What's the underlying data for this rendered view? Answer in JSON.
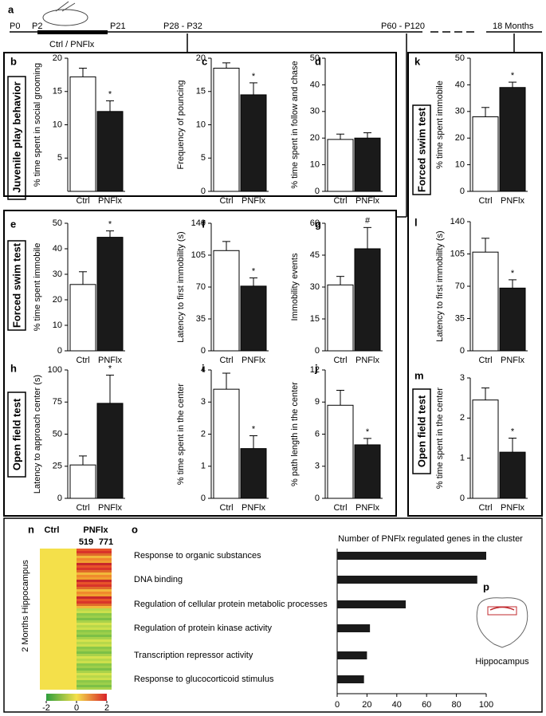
{
  "timeline": {
    "label": "a",
    "points": [
      "P0",
      "P2",
      "P21",
      "P28 - P32",
      "P60 - P120",
      "18 Months"
    ],
    "treatment": "Ctrl / PNFlx"
  },
  "sections": [
    "Juvenile play behavior",
    "Forced swim test",
    "Open field test",
    "Forced swim test",
    "Open field test"
  ],
  "brain_panel": {
    "label": "p",
    "text": "Hippocampus"
  },
  "chart_data": [
    {
      "type": "bar",
      "label": "b",
      "ylabel": "% time spent in social grooming",
      "categories": [
        "Ctrl",
        "PNFlx"
      ],
      "values": [
        17.2,
        12
      ],
      "errors": [
        1.3,
        1.6
      ],
      "significance": [
        null,
        "*"
      ],
      "colors": [
        "#ffffff",
        "#1a1a1a"
      ],
      "ylim": [
        0,
        20
      ],
      "yticks": [
        5,
        10,
        15,
        20
      ]
    },
    {
      "type": "bar",
      "label": "c",
      "ylabel": "Frequency of pouncing",
      "categories": [
        "Ctrl",
        "PNFlx"
      ],
      "values": [
        18.5,
        14.5
      ],
      "errors": [
        0.8,
        1.8
      ],
      "significance": [
        null,
        "*"
      ],
      "colors": [
        "#ffffff",
        "#1a1a1a"
      ],
      "ylim": [
        0,
        20
      ],
      "yticks": [
        0,
        5,
        10,
        15,
        20
      ]
    },
    {
      "type": "bar",
      "label": "d",
      "ylabel": "% time spent in follow and chase",
      "categories": [
        "Ctrl",
        "PNFlx"
      ],
      "values": [
        19.5,
        20
      ],
      "errors": [
        2,
        2
      ],
      "significance": [
        null,
        null
      ],
      "colors": [
        "#ffffff",
        "#1a1a1a"
      ],
      "ylim": [
        0,
        50
      ],
      "yticks": [
        0,
        10,
        20,
        30,
        40,
        50
      ]
    },
    {
      "type": "bar",
      "label": "e",
      "ylabel": "% time spent immobile",
      "categories": [
        "Ctrl",
        "PNFlx"
      ],
      "values": [
        26,
        44.5
      ],
      "errors": [
        5,
        2.5
      ],
      "significance": [
        null,
        "*"
      ],
      "colors": [
        "#ffffff",
        "#1a1a1a"
      ],
      "ylim": [
        0,
        50
      ],
      "yticks": [
        0,
        10,
        20,
        30,
        40,
        50
      ]
    },
    {
      "type": "bar",
      "label": "f",
      "ylabel": "Latency to first immobility (s)",
      "categories": [
        "Ctrl",
        "PNFlx"
      ],
      "values": [
        110,
        71
      ],
      "errors": [
        10,
        9
      ],
      "significance": [
        null,
        "*"
      ],
      "colors": [
        "#ffffff",
        "#1a1a1a"
      ],
      "ylim": [
        0,
        140
      ],
      "yticks": [
        0,
        35,
        70,
        105,
        140
      ]
    },
    {
      "type": "bar",
      "label": "g",
      "ylabel": "Immobility events",
      "categories": [
        "Ctrl",
        "PNFlx"
      ],
      "values": [
        31,
        48
      ],
      "errors": [
        4,
        10
      ],
      "significance": [
        null,
        "#"
      ],
      "colors": [
        "#ffffff",
        "#1a1a1a"
      ],
      "ylim": [
        0,
        60
      ],
      "yticks": [
        0,
        15,
        30,
        45,
        60
      ]
    },
    {
      "type": "bar",
      "label": "h",
      "ylabel": "Latency to approach center (s)",
      "categories": [
        "Ctrl",
        "PNFlx"
      ],
      "values": [
        26,
        74
      ],
      "errors": [
        7,
        22
      ],
      "significance": [
        null,
        "*"
      ],
      "colors": [
        "#ffffff",
        "#1a1a1a"
      ],
      "ylim": [
        0,
        100
      ],
      "yticks": [
        0,
        25,
        50,
        75,
        100
      ]
    },
    {
      "type": "bar",
      "label": "i",
      "ylabel": "% time spent in the center",
      "categories": [
        "Ctrl",
        "PNFlx"
      ],
      "values": [
        3.4,
        1.55
      ],
      "errors": [
        0.5,
        0.4
      ],
      "significance": [
        null,
        "*"
      ],
      "colors": [
        "#ffffff",
        "#1a1a1a"
      ],
      "ylim": [
        0,
        4
      ],
      "yticks": [
        0,
        1,
        2,
        3,
        4
      ]
    },
    {
      "type": "bar",
      "label": "j",
      "ylabel": "% path length in the center",
      "categories": [
        "Ctrl",
        "PNFlx"
      ],
      "values": [
        8.7,
        5
      ],
      "errors": [
        1.4,
        0.6
      ],
      "significance": [
        null,
        "*"
      ],
      "colors": [
        "#ffffff",
        "#1a1a1a"
      ],
      "ylim": [
        0,
        12
      ],
      "yticks": [
        0,
        3,
        6,
        9,
        12
      ]
    },
    {
      "type": "bar",
      "label": "k",
      "ylabel": "% time spent immobile",
      "categories": [
        "Ctrl",
        "PNFlx"
      ],
      "values": [
        28,
        39
      ],
      "errors": [
        3.5,
        2
      ],
      "significance": [
        null,
        "*"
      ],
      "colors": [
        "#ffffff",
        "#1a1a1a"
      ],
      "ylim": [
        0,
        50
      ],
      "yticks": [
        0,
        10,
        20,
        30,
        40,
        50
      ]
    },
    {
      "type": "bar",
      "label": "l",
      "ylabel": "Latency to first immobility (s)",
      "categories": [
        "Ctrl",
        "PNFlx"
      ],
      "values": [
        107,
        68
      ],
      "errors": [
        15,
        9
      ],
      "significance": [
        null,
        "*"
      ],
      "colors": [
        "#ffffff",
        "#1a1a1a"
      ],
      "ylim": [
        0,
        140
      ],
      "yticks": [
        0,
        35,
        70,
        105,
        140
      ]
    },
    {
      "type": "bar",
      "label": "m",
      "ylabel": "% time spent in the center",
      "categories": [
        "Ctrl",
        "PNFlx"
      ],
      "values": [
        2.45,
        1.15
      ],
      "errors": [
        0.3,
        0.35
      ],
      "significance": [
        null,
        "*"
      ],
      "colors": [
        "#ffffff",
        "#1a1a1a"
      ],
      "ylim": [
        0,
        3
      ],
      "yticks": [
        0,
        1,
        2,
        3
      ]
    },
    {
      "type": "heatmap",
      "label": "n",
      "ylabel": "2 Months Hippocampus",
      "columns": [
        "Ctrl",
        "PNFlx"
      ],
      "counts": [
        519,
        771
      ],
      "count_colors": [
        "#c0282d",
        "#5aa832"
      ],
      "colorbar_ticks": [
        -2,
        0,
        2
      ]
    },
    {
      "type": "hbar",
      "label": "o",
      "title": "Number of PNFlx regulated genes in the cluster",
      "categories": [
        "Response to organic substances",
        "DNA binding",
        "Regulation of cellular protein metabolic processes",
        "Regulation of protein kinase activity",
        "Transcription repressor activity",
        "Response to glucocorticoid stimulus"
      ],
      "values": [
        100,
        94,
        46,
        22,
        20,
        18
      ],
      "color": "#1a1a1a",
      "xlim": [
        0,
        100
      ],
      "xticks": [
        0,
        20,
        40,
        60,
        80,
        100
      ]
    }
  ]
}
